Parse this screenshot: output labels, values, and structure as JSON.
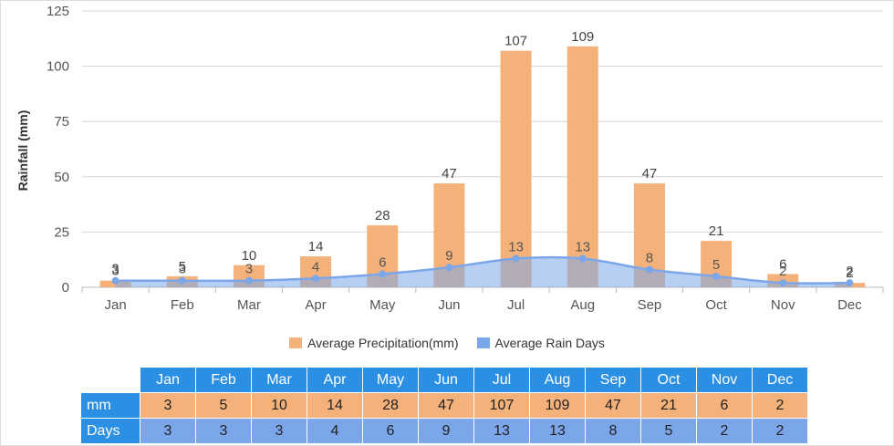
{
  "chart_data": {
    "type": "bar",
    "categories": [
      "Jan",
      "Feb",
      "Mar",
      "Apr",
      "May",
      "Jun",
      "Jul",
      "Aug",
      "Sep",
      "Oct",
      "Nov",
      "Dec"
    ],
    "series": [
      {
        "name": "Average Precipitation(mm)",
        "type": "bar",
        "color": "#f4b17a",
        "values": [
          3,
          5,
          10,
          14,
          28,
          47,
          107,
          109,
          47,
          21,
          6,
          2
        ]
      },
      {
        "name": "Average Rain Days",
        "type": "area",
        "color": "#7ba7ea",
        "values": [
          3,
          3,
          3,
          4,
          6,
          9,
          13,
          13,
          8,
          5,
          2,
          2
        ]
      }
    ],
    "ylabel": "Rainfall (mm)",
    "ylim": [
      0,
      125
    ],
    "yticks": [
      "0",
      "25",
      "50",
      "75",
      "100",
      "125"
    ],
    "grid": true,
    "legend_position": "bottom"
  },
  "table": {
    "months": [
      "Jan",
      "Feb",
      "Mar",
      "Apr",
      "May",
      "Jun",
      "Jul",
      "Aug",
      "Sep",
      "Oct",
      "Nov",
      "Dec"
    ],
    "rows": [
      {
        "label": "mm",
        "values": [
          "3",
          "5",
          "10",
          "14",
          "28",
          "47",
          "107",
          "109",
          "47",
          "21",
          "6",
          "2"
        ]
      },
      {
        "label": "Days",
        "values": [
          "3",
          "3",
          "3",
          "4",
          "6",
          "9",
          "13",
          "13",
          "8",
          "5",
          "2",
          "2"
        ]
      }
    ],
    "colors": {
      "header": "#2b8fe3",
      "mm_row": "#f4b17a",
      "days_row": "#7ba7ea"
    }
  }
}
